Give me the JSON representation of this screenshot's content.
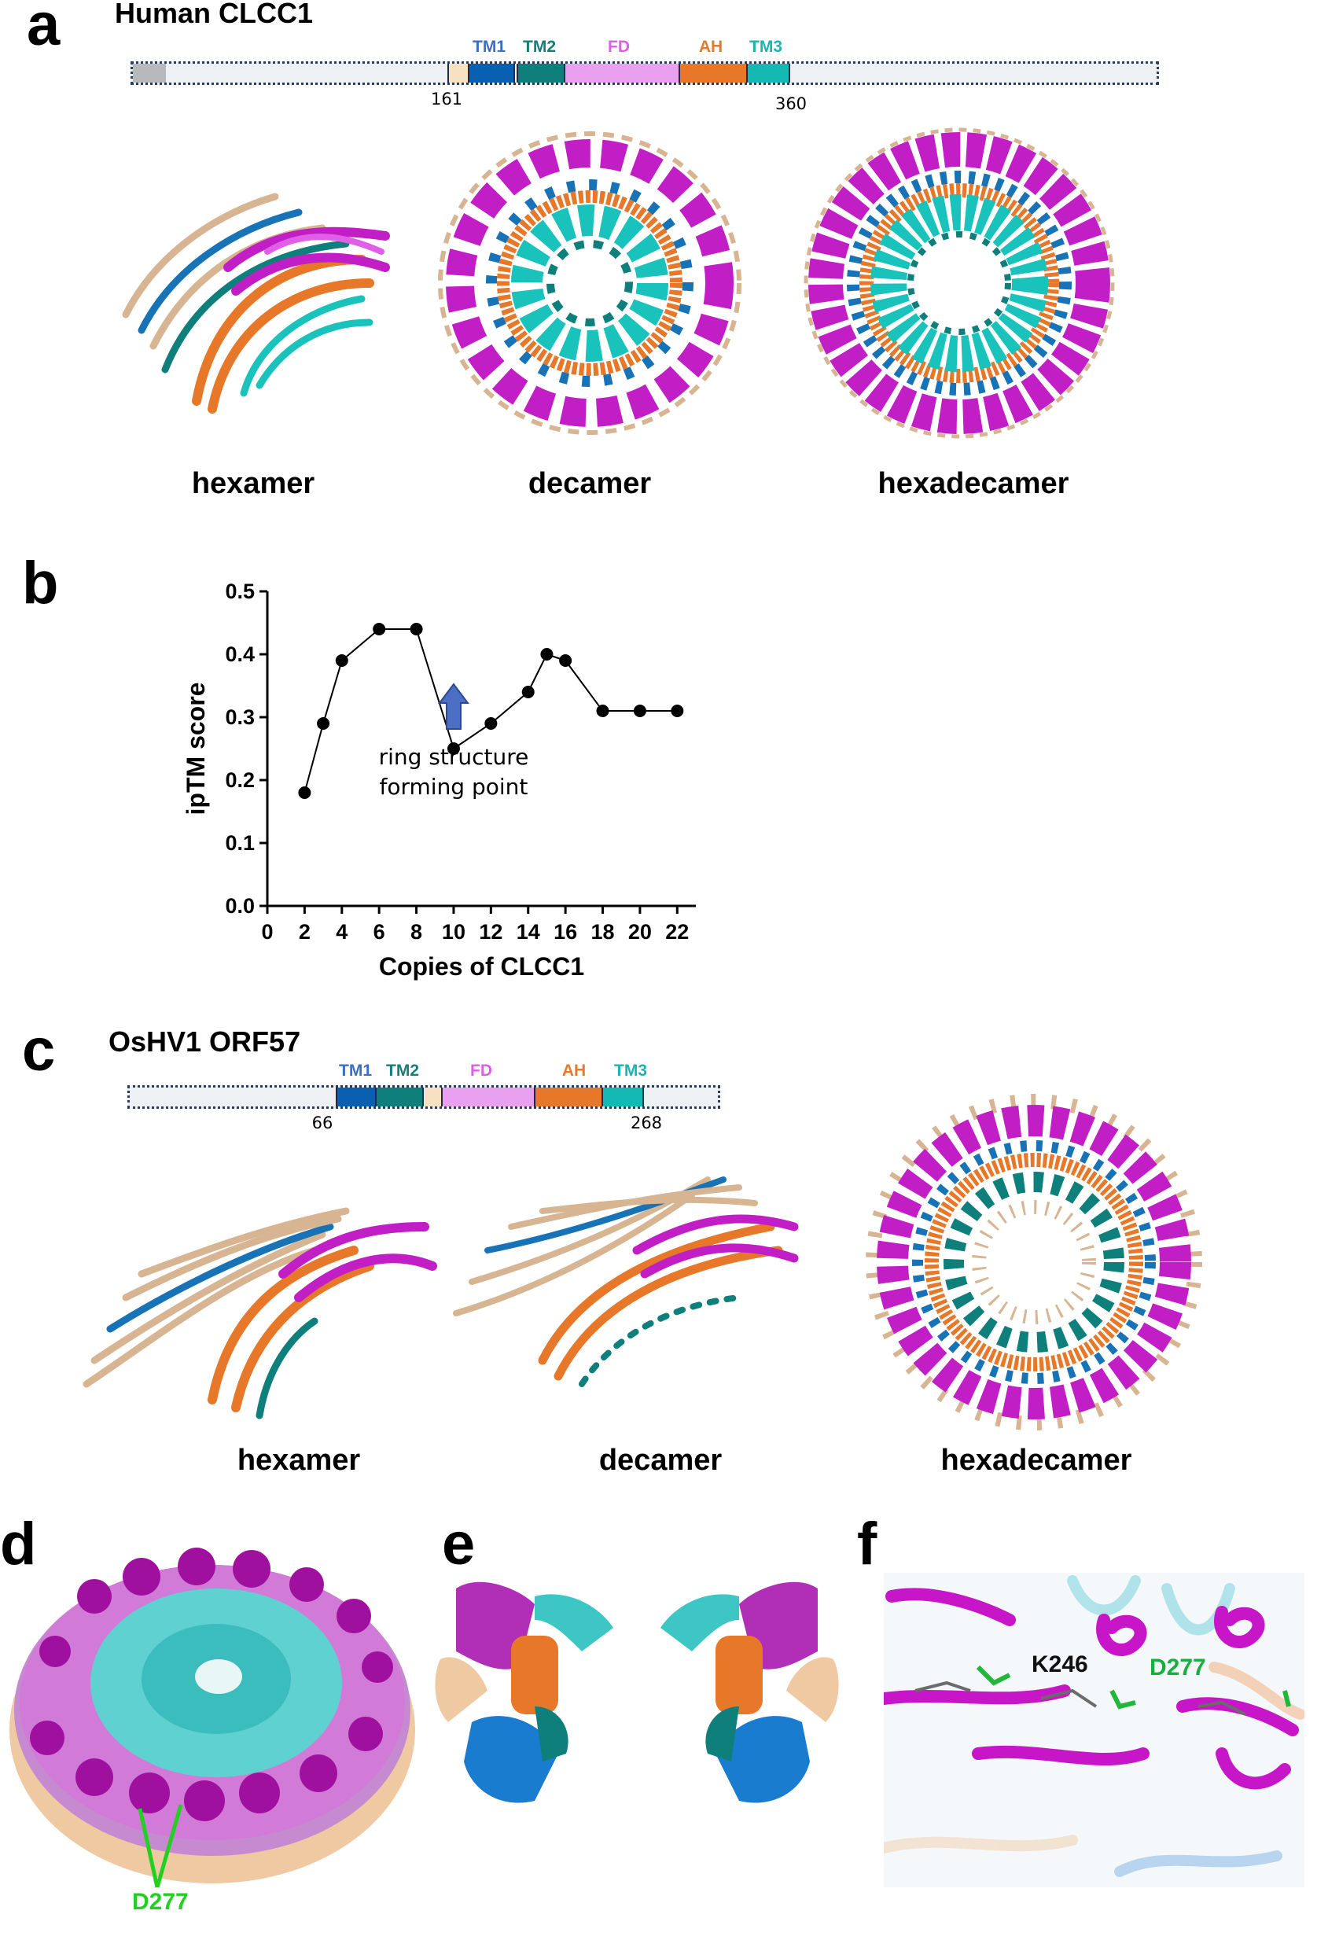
{
  "panels": {
    "a": {
      "letter": "a",
      "title": "Human CLCC1",
      "domains": [
        {
          "name": "TM1",
          "color": "#0a60b0",
          "text_color": "#3a6fc8"
        },
        {
          "name": "TM2",
          "color": "#0f7f7b",
          "text_color": "#127f7a"
        },
        {
          "name": "FD",
          "color": "#e9a0ee",
          "text_color": "#dd5fe6"
        },
        {
          "name": "AH",
          "color": "#e7782a",
          "text_color": "#e67a2b"
        },
        {
          "name": "TM3",
          "color": "#14b9b3",
          "text_color": "#13b8b2"
        }
      ],
      "start_pos": "161",
      "end_pos": "360",
      "structures": [
        "hexamer",
        "decamer",
        "hexadecamer"
      ]
    },
    "b": {
      "letter": "b",
      "annotation_line1": "ring structure",
      "annotation_line2": "forming point"
    },
    "c": {
      "letter": "c",
      "title": "OsHV1 ORF57",
      "domains": [
        {
          "name": "TM1",
          "color": "#0a60b0",
          "text_color": "#3a6fc8"
        },
        {
          "name": "TM2",
          "color": "#0f7f7b",
          "text_color": "#127f7a"
        },
        {
          "name": "FD",
          "color": "#e9a0ee",
          "text_color": "#dd5fe6"
        },
        {
          "name": "AH",
          "color": "#e7782a",
          "text_color": "#e67a2b"
        },
        {
          "name": "TM3",
          "color": "#14b9b3",
          "text_color": "#13b8b2"
        }
      ],
      "start_pos": "66",
      "end_pos": "268",
      "structures": [
        "hexamer",
        "decamer",
        "hexadecamer"
      ]
    },
    "d": {
      "letter": "d",
      "residue_label": "D277"
    },
    "e": {
      "letter": "e"
    },
    "f": {
      "letter": "f",
      "residue1": "K246",
      "residue2": "D277"
    }
  },
  "chart_data": {
    "type": "line",
    "xlabel": "Copies of CLCC1",
    "ylabel": "ipTM score",
    "xlim": [
      0,
      23
    ],
    "ylim": [
      0.0,
      0.5
    ],
    "xticks": [
      0,
      2,
      4,
      6,
      8,
      10,
      12,
      14,
      16,
      18,
      20,
      22
    ],
    "yticks": [
      0.0,
      0.1,
      0.2,
      0.3,
      0.4,
      0.5
    ],
    "x": [
      2,
      3,
      4,
      6,
      8,
      10,
      12,
      14,
      15,
      16,
      18,
      20,
      22
    ],
    "y": [
      0.18,
      0.29,
      0.39,
      0.44,
      0.44,
      0.25,
      0.29,
      0.34,
      0.4,
      0.39,
      0.31,
      0.31,
      0.31
    ],
    "annotation_x": 10,
    "colors": {
      "line": "#000000",
      "marker": "#000000",
      "arrow": "#4a6fc4"
    }
  }
}
